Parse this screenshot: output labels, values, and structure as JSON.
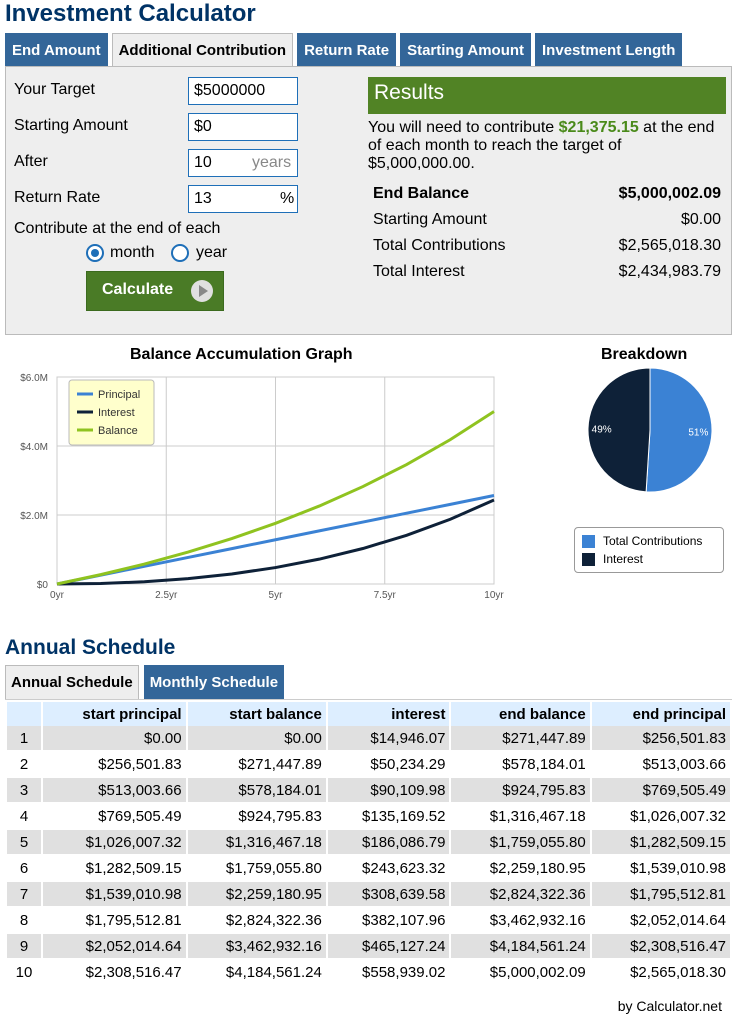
{
  "page_title": "Investment Calculator",
  "tabs": [
    {
      "label": "End Amount",
      "active": false
    },
    {
      "label": "Additional Contribution",
      "active": true
    },
    {
      "label": "Return Rate",
      "active": false
    },
    {
      "label": "Starting Amount",
      "active": false
    },
    {
      "label": "Investment Length",
      "active": false
    }
  ],
  "form": {
    "target_label": "Your Target",
    "target_value": "$5000000",
    "starting_label": "Starting Amount",
    "starting_value": "$0",
    "after_label": "After",
    "after_value": "10",
    "after_unit": "years",
    "rate_label": "Return Rate",
    "rate_value": "13",
    "rate_unit": "%",
    "contribute_label": "Contribute at the end of each",
    "option_month": "month",
    "option_year": "year",
    "selected": "month",
    "calculate_label": "Calculate"
  },
  "results": {
    "header": "Results",
    "summary_pre": "You will need to contribute ",
    "summary_amount": "$21,375.15",
    "summary_post": " at the end of each month to reach the target of $5,000,000.00.",
    "rows": [
      {
        "label": "End Balance",
        "value": "$5,000,002.09"
      },
      {
        "label": "Starting Amount",
        "value": "$0.00"
      },
      {
        "label": "Total Contributions",
        "value": "$2,565,018.30"
      },
      {
        "label": "Total Interest",
        "value": "$2,434,983.79"
      }
    ]
  },
  "colors": {
    "principal": "#3b82d4",
    "interest": "#0e2138",
    "balance": "#8fc320",
    "tab_blue": "#336699"
  },
  "chart_data": [
    {
      "type": "line",
      "title": "Balance Accumulation Graph",
      "x_ticks": [
        "0yr",
        "2.5yr",
        "5yr",
        "7.5yr",
        "10yr"
      ],
      "y_ticks": [
        "$0",
        "$2.0M",
        "$4.0M",
        "$6.0M"
      ],
      "xlim": [
        0,
        10
      ],
      "ylim": [
        0,
        6000000
      ],
      "legend_position": "top-left",
      "grid": true,
      "x": [
        0,
        1,
        2,
        3,
        4,
        5,
        6,
        7,
        8,
        9,
        10
      ],
      "series": [
        {
          "name": "Principal",
          "values": [
            0,
            256501.83,
            513003.66,
            769505.49,
            1026007.32,
            1282509.15,
            1539010.98,
            1795512.81,
            2052014.64,
            2308516.47,
            2565018.3
          ]
        },
        {
          "name": "Interest",
          "values": [
            0,
            14946.07,
            65180.36,
            155290.34,
            290459.86,
            476546.65,
            720044.82,
            1028809.55,
            1410917.52,
            1876044.77,
            2434983.79
          ]
        },
        {
          "name": "Balance",
          "values": [
            0,
            271447.89,
            578184.01,
            924795.83,
            1316467.18,
            1759055.8,
            2259180.95,
            2824322.36,
            3462932.16,
            4184561.24,
            5000002.09
          ]
        }
      ]
    },
    {
      "type": "pie",
      "title": "Breakdown",
      "slices": [
        {
          "name": "Total Contributions",
          "value": 51,
          "label": "51%"
        },
        {
          "name": "Interest",
          "value": 49,
          "label": "49%"
        }
      ]
    }
  ],
  "schedule": {
    "title": "Annual Schedule",
    "tabs": [
      {
        "label": "Annual Schedule",
        "active": true
      },
      {
        "label": "Monthly Schedule",
        "active": false
      }
    ],
    "headers": [
      "",
      "start principal",
      "start balance",
      "interest",
      "end balance",
      "end principal"
    ],
    "rows": [
      [
        "1",
        "$0.00",
        "$0.00",
        "$14,946.07",
        "$271,447.89",
        "$256,501.83"
      ],
      [
        "2",
        "$256,501.83",
        "$271,447.89",
        "$50,234.29",
        "$578,184.01",
        "$513,003.66"
      ],
      [
        "3",
        "$513,003.66",
        "$578,184.01",
        "$90,109.98",
        "$924,795.83",
        "$769,505.49"
      ],
      [
        "4",
        "$769,505.49",
        "$924,795.83",
        "$135,169.52",
        "$1,316,467.18",
        "$1,026,007.32"
      ],
      [
        "5",
        "$1,026,007.32",
        "$1,316,467.18",
        "$186,086.79",
        "$1,759,055.80",
        "$1,282,509.15"
      ],
      [
        "6",
        "$1,282,509.15",
        "$1,759,055.80",
        "$243,623.32",
        "$2,259,180.95",
        "$1,539,010.98"
      ],
      [
        "7",
        "$1,539,010.98",
        "$2,259,180.95",
        "$308,639.58",
        "$2,824,322.36",
        "$1,795,512.81"
      ],
      [
        "8",
        "$1,795,512.81",
        "$2,824,322.36",
        "$382,107.96",
        "$3,462,932.16",
        "$2,052,014.64"
      ],
      [
        "9",
        "$2,052,014.64",
        "$3,462,932.16",
        "$465,127.24",
        "$4,184,561.24",
        "$2,308,516.47"
      ],
      [
        "10",
        "$2,308,516.47",
        "$4,184,561.24",
        "$558,939.02",
        "$5,000,002.09",
        "$2,565,018.30"
      ]
    ]
  },
  "credit": "by Calculator.net"
}
